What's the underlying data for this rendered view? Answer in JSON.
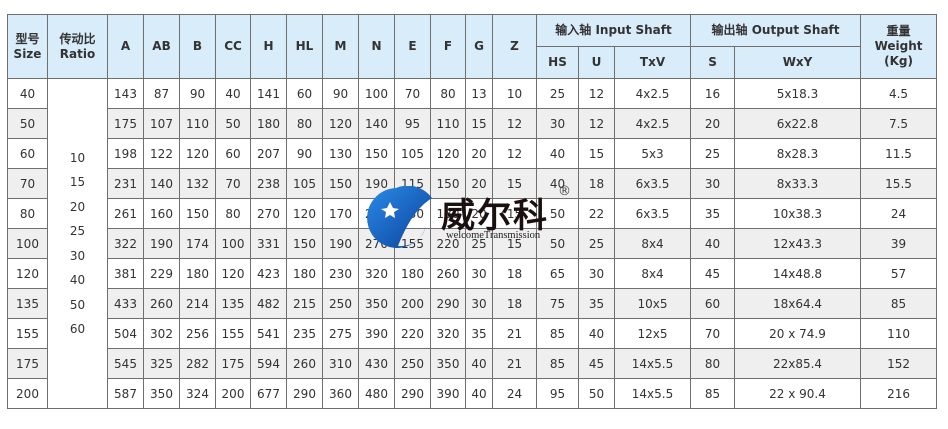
{
  "headers": {
    "size": [
      "型号",
      "Size"
    ],
    "ratio": [
      "传动比",
      "Ratio"
    ],
    "dims": [
      "A",
      "AB",
      "B",
      "CC",
      "H",
      "HL",
      "M",
      "N",
      "E",
      "F",
      "G",
      "Z"
    ],
    "input_group": "输入轴 Input Shaft",
    "input_cols": [
      "HS",
      "U",
      "TxV"
    ],
    "output_group": "输出轴 Output Shaft",
    "output_cols": [
      "S",
      "WxY"
    ],
    "weight": [
      "重量",
      "Weight",
      "(Kg)"
    ]
  },
  "ratios": [
    "10",
    "15",
    "20",
    "25",
    "30",
    "40",
    "50",
    "60"
  ],
  "rows": [
    [
      "40",
      "143",
      "87",
      "90",
      "40",
      "141",
      "60",
      "90",
      "100",
      "70",
      "80",
      "13",
      "10",
      "25",
      "12",
      "4x2.5",
      "16",
      "5x18.3",
      "4.5"
    ],
    [
      "50",
      "175",
      "107",
      "110",
      "50",
      "180",
      "80",
      "120",
      "140",
      "95",
      "110",
      "15",
      "12",
      "30",
      "12",
      "4x2.5",
      "20",
      "6x22.8",
      "7.5"
    ],
    [
      "60",
      "198",
      "122",
      "120",
      "60",
      "207",
      "90",
      "130",
      "150",
      "105",
      "120",
      "20",
      "12",
      "40",
      "15",
      "5x3",
      "25",
      "8x28.3",
      "11.5"
    ],
    [
      "70",
      "231",
      "140",
      "132",
      "70",
      "238",
      "105",
      "150",
      "190",
      "115",
      "150",
      "20",
      "15",
      "40",
      "18",
      "6x3.5",
      "30",
      "8x33.3",
      "15.5"
    ],
    [
      "80",
      "261",
      "160",
      "150",
      "80",
      "270",
      "120",
      "170",
      "230",
      "130",
      "180",
      "20",
      "15",
      "50",
      "22",
      "6x3.5",
      "35",
      "10x38.3",
      "24"
    ],
    [
      "100",
      "322",
      "190",
      "174",
      "100",
      "331",
      "150",
      "190",
      "270",
      "155",
      "220",
      "25",
      "15",
      "50",
      "25",
      "8x4",
      "40",
      "12x43.3",
      "39"
    ],
    [
      "120",
      "381",
      "229",
      "180",
      "120",
      "423",
      "180",
      "230",
      "320",
      "180",
      "260",
      "30",
      "18",
      "65",
      "30",
      "8x4",
      "45",
      "14x48.8",
      "57"
    ],
    [
      "135",
      "433",
      "260",
      "214",
      "135",
      "482",
      "215",
      "250",
      "350",
      "200",
      "290",
      "30",
      "18",
      "75",
      "35",
      "10x5",
      "60",
      "18x64.4",
      "85"
    ],
    [
      "155",
      "504",
      "302",
      "256",
      "155",
      "541",
      "235",
      "275",
      "390",
      "220",
      "320",
      "35",
      "21",
      "85",
      "40",
      "12x5",
      "70",
      "20 x 74.9",
      "110"
    ],
    [
      "175",
      "545",
      "325",
      "282",
      "175",
      "594",
      "260",
      "310",
      "430",
      "250",
      "350",
      "40",
      "21",
      "85",
      "45",
      "14x5.5",
      "80",
      "22x85.4",
      "152"
    ],
    [
      "200",
      "587",
      "350",
      "324",
      "200",
      "677",
      "290",
      "360",
      "480",
      "290",
      "390",
      "40",
      "24",
      "95",
      "50",
      "14x5.5",
      "85",
      "22 x 90.4",
      "216"
    ]
  ],
  "watermark": {
    "cn": "威尔科",
    "en": "welcomeTransmission",
    "mark": "®"
  },
  "colors": {
    "header_bg": "#d8ecfa",
    "row_alt": "#efefef",
    "border": "#6f6f6f",
    "logo_blue": "#1a6fd0"
  }
}
